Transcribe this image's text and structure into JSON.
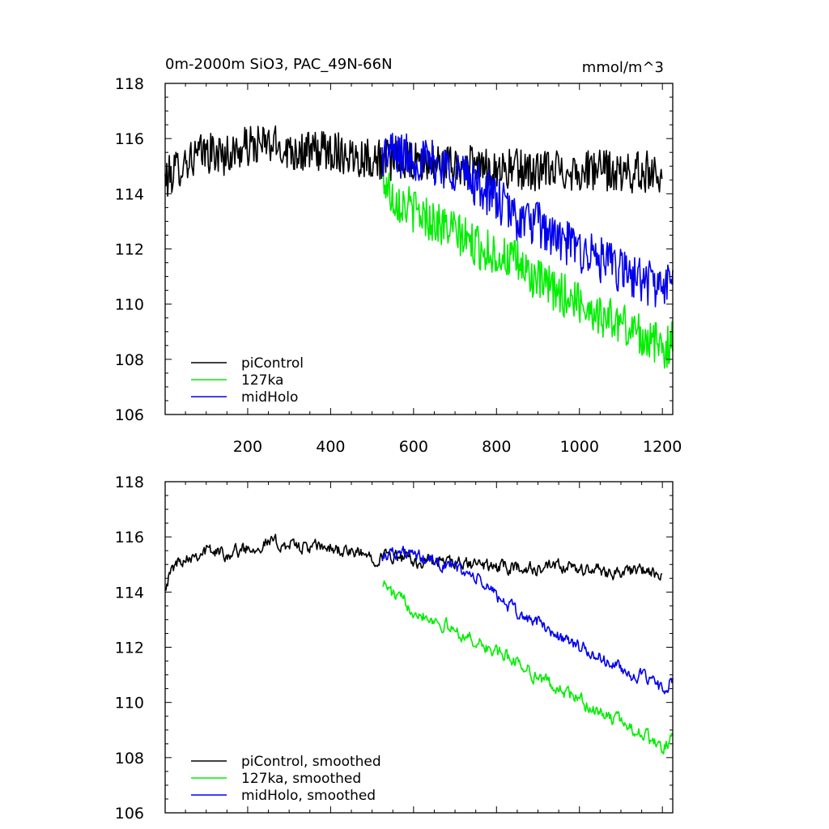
{
  "chart_data": [
    {
      "type": "line",
      "title": "0m-2000m SiO3, PAC_49N-66N",
      "units": "mmol/m^3",
      "xlabel": "",
      "ylabel": "",
      "xlim": [
        1,
        1225
      ],
      "ylim": [
        106,
        118
      ],
      "yticks": [
        106,
        108,
        110,
        112,
        114,
        116,
        118
      ],
      "xticks": [
        200,
        400,
        600,
        800,
        1000,
        1200
      ],
      "xtick_labels_shown": true,
      "legend_position": "bottom-left",
      "series": [
        {
          "name": "piControl",
          "color": "#000000",
          "x_start": 1,
          "x_end": 1200,
          "noise": 0.75,
          "anchors": [
            [
              1,
              114.5
            ],
            [
              50,
              115.2
            ],
            [
              100,
              115.5
            ],
            [
              150,
              115.4
            ],
            [
              200,
              115.7
            ],
            [
              250,
              115.8
            ],
            [
              300,
              115.6
            ],
            [
              350,
              115.5
            ],
            [
              400,
              115.6
            ],
            [
              450,
              115.4
            ],
            [
              500,
              115.3
            ],
            [
              550,
              115.2
            ],
            [
              600,
              115.1
            ],
            [
              650,
              115.1
            ],
            [
              700,
              115.0
            ],
            [
              750,
              115.0
            ],
            [
              800,
              114.9
            ],
            [
              850,
              114.9
            ],
            [
              900,
              114.8
            ],
            [
              950,
              114.9
            ],
            [
              1000,
              114.8
            ],
            [
              1050,
              114.9
            ],
            [
              1100,
              114.7
            ],
            [
              1150,
              114.8
            ],
            [
              1200,
              114.8
            ]
          ]
        },
        {
          "name": "127ka",
          "color": "#00ee00",
          "x_start": 525,
          "x_end": 1225,
          "noise": 0.8,
          "anchors": [
            [
              525,
              114.6
            ],
            [
              550,
              113.9
            ],
            [
              600,
              113.4
            ],
            [
              650,
              113.0
            ],
            [
              700,
              112.6
            ],
            [
              750,
              112.1
            ],
            [
              800,
              111.8
            ],
            [
              850,
              111.5
            ],
            [
              900,
              110.8
            ],
            [
              950,
              110.4
            ],
            [
              1000,
              110.1
            ],
            [
              1050,
              109.6
            ],
            [
              1100,
              109.3
            ],
            [
              1150,
              108.9
            ],
            [
              1200,
              108.4
            ],
            [
              1225,
              108.6
            ]
          ]
        },
        {
          "name": "midHolo",
          "color": "#0000ee",
          "x_start": 525,
          "x_end": 1225,
          "noise": 0.85,
          "anchors": [
            [
              525,
              115.4
            ],
            [
              550,
              115.5
            ],
            [
              600,
              115.3
            ],
            [
              650,
              115.1
            ],
            [
              700,
              114.9
            ],
            [
              750,
              114.4
            ],
            [
              800,
              113.8
            ],
            [
              850,
              113.1
            ],
            [
              900,
              112.9
            ],
            [
              950,
              112.3
            ],
            [
              1000,
              112.0
            ],
            [
              1050,
              111.6
            ],
            [
              1100,
              111.2
            ],
            [
              1150,
              110.9
            ],
            [
              1200,
              110.6
            ],
            [
              1225,
              110.8
            ]
          ]
        }
      ]
    },
    {
      "type": "line",
      "title": "",
      "units": "",
      "xlabel": "",
      "ylabel": "",
      "xlim": [
        1,
        1225
      ],
      "ylim": [
        106,
        118
      ],
      "yticks": [
        106,
        108,
        110,
        112,
        114,
        116,
        118
      ],
      "xticks": [
        200,
        400,
        600,
        800,
        1000,
        1200
      ],
      "xtick_labels_shown": false,
      "legend_position": "bottom-left",
      "series": [
        {
          "name": "piControl, smoothed",
          "color": "#000000",
          "x_start": 1,
          "x_end": 1200,
          "noise": 0.45,
          "anchors": [
            [
              1,
              114.3
            ],
            [
              25,
              115.0
            ],
            [
              50,
              115.3
            ],
            [
              100,
              115.5
            ],
            [
              150,
              115.4
            ],
            [
              200,
              115.6
            ],
            [
              250,
              115.8
            ],
            [
              300,
              115.7
            ],
            [
              350,
              115.6
            ],
            [
              400,
              115.6
            ],
            [
              450,
              115.4
            ],
            [
              500,
              115.3
            ],
            [
              550,
              115.3
            ],
            [
              600,
              115.1
            ],
            [
              650,
              115.1
            ],
            [
              700,
              115.0
            ],
            [
              750,
              115.0
            ],
            [
              800,
              114.9
            ],
            [
              850,
              114.9
            ],
            [
              900,
              114.8
            ],
            [
              950,
              114.9
            ],
            [
              1000,
              114.8
            ],
            [
              1050,
              114.8
            ],
            [
              1100,
              114.7
            ],
            [
              1150,
              114.8
            ],
            [
              1200,
              114.5
            ]
          ]
        },
        {
          "name": "127ka, smoothed",
          "color": "#00ee00",
          "x_start": 525,
          "x_end": 1225,
          "noise": 0.45,
          "anchors": [
            [
              525,
              114.4
            ],
            [
              550,
              113.9
            ],
            [
              600,
              113.4
            ],
            [
              650,
              113.0
            ],
            [
              700,
              112.6
            ],
            [
              750,
              112.2
            ],
            [
              800,
              111.8
            ],
            [
              850,
              111.5
            ],
            [
              900,
              110.9
            ],
            [
              950,
              110.5
            ],
            [
              1000,
              110.1
            ],
            [
              1050,
              109.6
            ],
            [
              1100,
              109.3
            ],
            [
              1150,
              108.9
            ],
            [
              1200,
              108.3
            ],
            [
              1225,
              108.8
            ]
          ]
        },
        {
          "name": "midHolo, smoothed",
          "color": "#0000ee",
          "x_start": 525,
          "x_end": 1225,
          "noise": 0.45,
          "anchors": [
            [
              525,
              115.3
            ],
            [
              550,
              115.5
            ],
            [
              600,
              115.3
            ],
            [
              650,
              115.1
            ],
            [
              700,
              114.9
            ],
            [
              750,
              114.5
            ],
            [
              800,
              113.9
            ],
            [
              850,
              113.2
            ],
            [
              900,
              112.9
            ],
            [
              950,
              112.4
            ],
            [
              1000,
              112.0
            ],
            [
              1050,
              111.6
            ],
            [
              1100,
              111.2
            ],
            [
              1150,
              110.9
            ],
            [
              1200,
              110.5
            ],
            [
              1225,
              110.8
            ]
          ]
        }
      ]
    }
  ]
}
